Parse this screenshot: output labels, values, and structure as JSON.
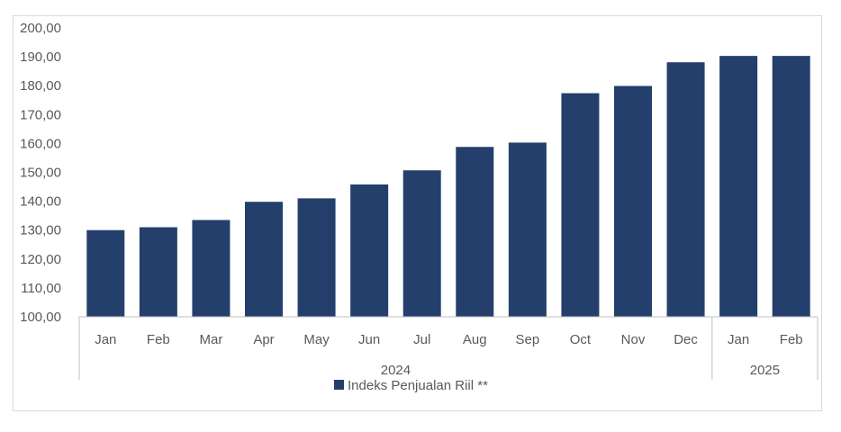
{
  "chart_data": {
    "type": "bar",
    "title": "",
    "xlabel": "",
    "ylabel": "",
    "ylim": [
      100,
      200
    ],
    "yticks": [
      "100,00",
      "110,00",
      "120,00",
      "130,00",
      "140,00",
      "150,00",
      "160,00",
      "170,00",
      "180,00",
      "190,00",
      "200,00"
    ],
    "grid": false,
    "legend_position": "bottom",
    "categories": [
      "Jan",
      "Feb",
      "Mar",
      "Apr",
      "May",
      "Jun",
      "Jul",
      "Aug",
      "Sep",
      "Oct",
      "Nov",
      "Dec",
      "Jan",
      "Feb"
    ],
    "groups": [
      {
        "label": "2024",
        "count": 12
      },
      {
        "label": "2025",
        "count": 2
      }
    ],
    "series": [
      {
        "name": "Indeks Penjualan Riil **",
        "color": "#243f6b",
        "values": [
          130.0,
          131.0,
          133.5,
          139.8,
          141.0,
          145.8,
          150.7,
          158.8,
          160.3,
          177.4,
          179.9,
          188.1,
          190.3,
          190.3
        ]
      }
    ]
  }
}
